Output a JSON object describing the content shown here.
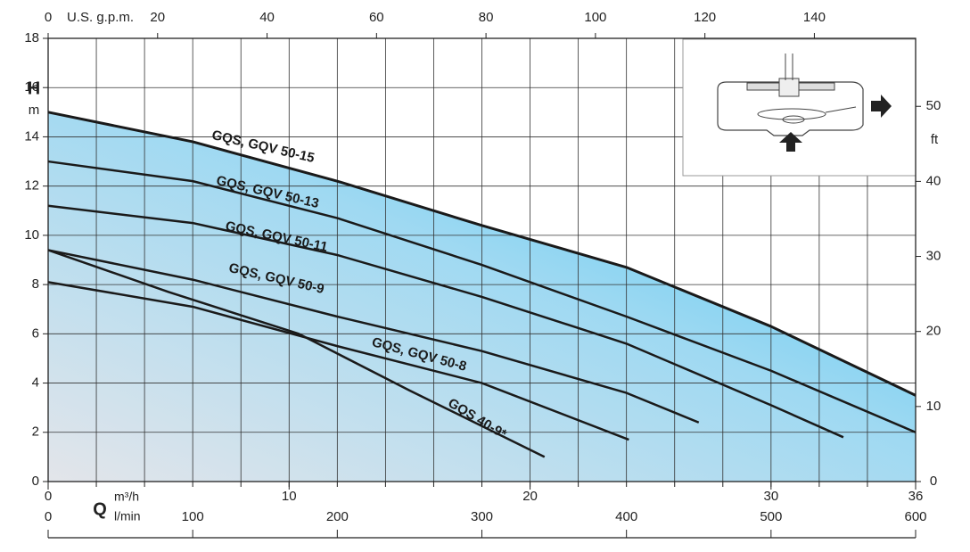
{
  "chart_data": {
    "type": "line",
    "xlabel": "Q",
    "xunit": "m³/h",
    "x2unit": "U.S. g.p.m.",
    "x3unit": "l/min",
    "ylabel": "H",
    "yunit": "m",
    "y2unit": "ft",
    "xlim": [
      0,
      36
    ],
    "xticks": [
      0,
      10,
      20,
      30,
      36
    ],
    "xgrid": [
      0,
      2,
      4,
      6,
      8,
      10,
      12,
      14,
      16,
      18,
      20,
      22,
      24,
      26,
      28,
      30,
      32,
      34,
      36
    ],
    "x2lim": [
      0,
      158.5
    ],
    "x2ticks": [
      0,
      20,
      40,
      60,
      80,
      100,
      120,
      140
    ],
    "x3lim": [
      0,
      600
    ],
    "x3ticks": [
      0,
      100,
      200,
      300,
      400,
      500,
      600
    ],
    "ylim": [
      0,
      18
    ],
    "yticks": [
      0,
      2,
      4,
      6,
      8,
      10,
      12,
      14,
      16,
      18
    ],
    "y2lim": [
      0,
      59.06
    ],
    "y2ticks": [
      0,
      10,
      20,
      30,
      40,
      50
    ],
    "grid": true,
    "fill_color": "#3fc3ef",
    "series": [
      {
        "name": "GQS, GQV 50-15",
        "color": "#1a1a1a",
        "x": [
          0,
          6,
          12,
          18,
          24,
          30,
          36
        ],
        "values": [
          15.0,
          13.8,
          12.2,
          10.4,
          8.7,
          6.3,
          3.5
        ]
      },
      {
        "name": "GQS, GQV 50-13",
        "color": "#1a1a1a",
        "x": [
          0,
          6,
          12,
          18,
          24,
          30,
          36
        ],
        "values": [
          13.0,
          12.2,
          10.7,
          8.8,
          6.7,
          4.5,
          2.0
        ]
      },
      {
        "name": "GQS, GQV 50-11",
        "color": "#1a1a1a",
        "x": [
          0,
          6,
          12,
          18,
          24,
          30,
          33
        ],
        "values": [
          11.2,
          10.5,
          9.2,
          7.5,
          5.6,
          3.1,
          1.8
        ]
      },
      {
        "name": "GQS, GQV 50-9",
        "color": "#1a1a1a",
        "x": [
          0,
          6,
          12,
          18,
          24,
          27
        ],
        "values": [
          9.4,
          8.2,
          6.7,
          5.3,
          3.6,
          2.4
        ]
      },
      {
        "name": "GQS, GQV 50-8",
        "color": "#1a1a1a",
        "x": [
          0,
          6,
          12,
          18,
          24.1
        ],
        "values": [
          8.1,
          7.1,
          5.5,
          4.0,
          1.7
        ]
      },
      {
        "name": "GQS 40-9*",
        "color": "#1a1a1a",
        "x": [
          0,
          5,
          10.4,
          15,
          20.6
        ],
        "values": [
          9.4,
          7.7,
          6.0,
          3.7,
          1.0
        ]
      }
    ]
  }
}
